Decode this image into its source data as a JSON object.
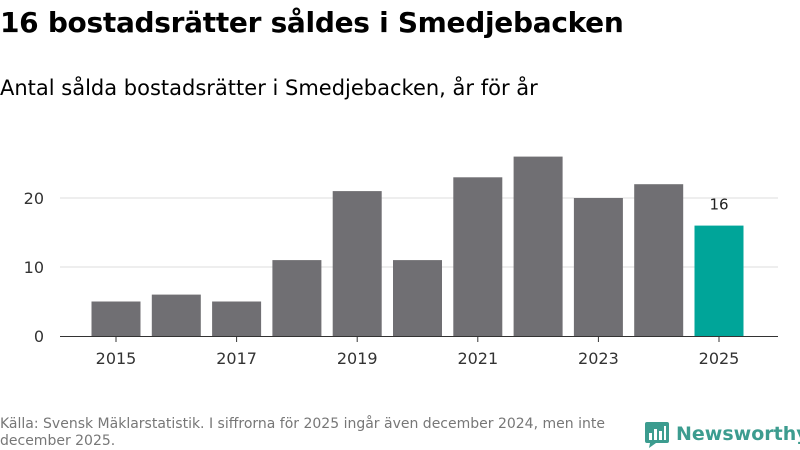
{
  "header": {
    "title": "16 bostadsrätter såldes i Smedjebacken",
    "subtitle": "Antal sålda bostadsrätter i Smedjebacken, år för år"
  },
  "chart_data": {
    "type": "bar",
    "title": "Antal sålda bostadsrätter i Smedjebacken, år för år",
    "xlabel": "",
    "ylabel": "",
    "categories": [
      "2015",
      "2016",
      "2017",
      "2018",
      "2019",
      "2020",
      "2021",
      "2022",
      "2023",
      "2024",
      "2025"
    ],
    "values": [
      5,
      6,
      5,
      11,
      21,
      11,
      23,
      26,
      20,
      22,
      16
    ],
    "x_tick_labels": [
      "2015",
      "2017",
      "2019",
      "2021",
      "2023",
      "2025"
    ],
    "y_ticks": [
      0,
      10,
      20
    ],
    "ylim": [
      0,
      28
    ],
    "grid": true,
    "highlight_index": 10,
    "data_labels": [
      {
        "index": 10,
        "text": "16"
      }
    ],
    "colors": {
      "bar": "#706f73",
      "highlight": "#00a599",
      "grid": "#dddddd",
      "axis": "#333333"
    }
  },
  "footer": {
    "source": "Källa: Svensk Mäklarstatistik. I siffrorna för 2025 ingår även december 2024, men inte december 2025.",
    "logo_text": "Newsworthy",
    "logo_icon": "newsworthy-logo-icon",
    "logo_color": "#3c9c8f"
  }
}
